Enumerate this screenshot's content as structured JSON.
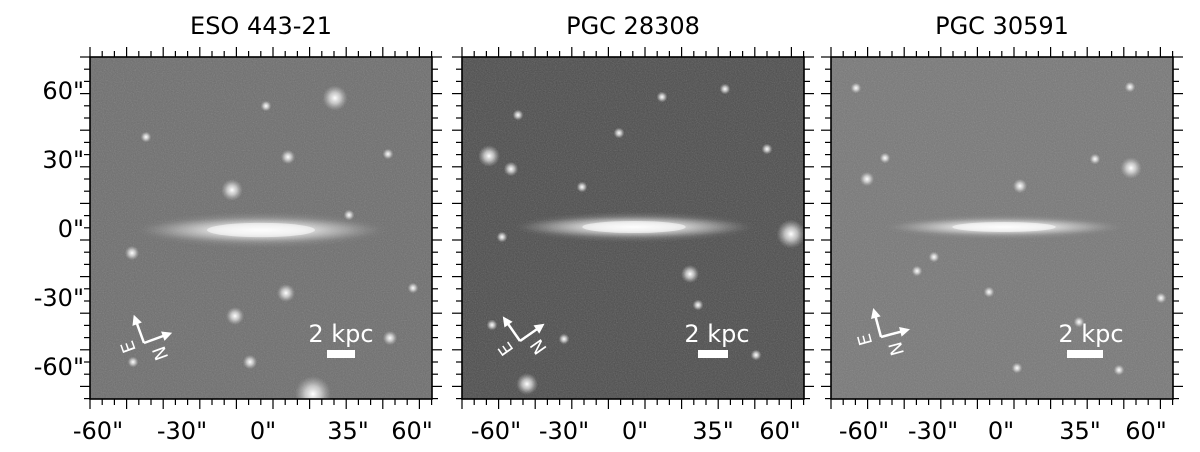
{
  "figure": {
    "panels": [
      {
        "title": "ESO 443-21",
        "scalebar_label": "2 kpc",
        "compass": {
          "east": "E",
          "north": "N"
        },
        "background_color": "#6d6d6d",
        "x_tick_labels": [
          "-60\"",
          "-30\"",
          "0\"",
          "35\"",
          "60\""
        ],
        "y_tick_labels": [
          "60\"",
          "30\"",
          "0\"",
          "-30\"",
          "-60\""
        ]
      },
      {
        "title": "PGC 28308",
        "scalebar_label": "2 kpc",
        "compass": {
          "east": "E",
          "north": "N"
        },
        "background_color": "#4c4c4c",
        "x_tick_labels": [
          "-60\"",
          "-30\"",
          "0\"",
          "35\"",
          "60\""
        ]
      },
      {
        "title": "PGC 30591",
        "scalebar_label": "2 kpc",
        "compass": {
          "east": "E",
          "north": "N"
        },
        "background_color": "#777777",
        "x_tick_labels": [
          "-60\"",
          "-30\"",
          "0\"",
          "35\"",
          "60\""
        ]
      }
    ]
  }
}
